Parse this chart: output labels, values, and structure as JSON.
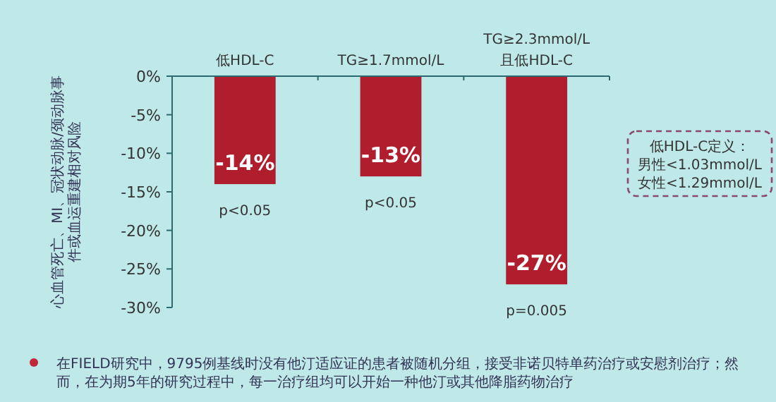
{
  "chart_data": {
    "type": "bar",
    "ylabel": "心血管死亡、MI、冠状动脉/颈动脉事件或血运重建相对风险",
    "categories": [
      "低HDL-C",
      "TG≥1.7mmol/L",
      "TG≥2.3mmol/L\n且低HDL-C"
    ],
    "values": [
      -14,
      -13,
      -27
    ],
    "color": "#b01e2e",
    "value_labels": [
      "-14%",
      "-13%",
      "-27%"
    ],
    "ylim": [
      -30,
      0
    ],
    "yticks": [
      {
        "value": 0,
        "label": "0%"
      },
      {
        "value": -5,
        "label": "-5%"
      },
      {
        "value": -10,
        "label": "-10%"
      },
      {
        "value": -15,
        "label": "-15%"
      },
      {
        "value": -20,
        "label": "-20%"
      },
      {
        "value": -25,
        "label": "-25%"
      },
      {
        "value": -30,
        "label": "-30%"
      }
    ],
    "grid": false,
    "annotations": [
      {
        "text": "p<0.05",
        "x": "低HDL-C",
        "y": -14
      },
      {
        "text": "p<0.05",
        "x": "TG≥1.7mmol/L",
        "y": -13
      },
      {
        "text": "p=0.005",
        "x": "TG≥2.3mmol/L\n且低HDL-C",
        "y": -27
      },
      "低HDL-C定义：",
      "男性<1.03mmol/L",
      "女性<1.29mmol/L",
      "在FIELD研究中，9795例基线时没有他汀适应证的患者被随机分组，接受非诺贝特单药治疗或安慰剂治疗；然而，在为期5年的研究过程中，每一治疗组均可以开始一种他汀或其他降脂药物治疗"
    ]
  }
}
